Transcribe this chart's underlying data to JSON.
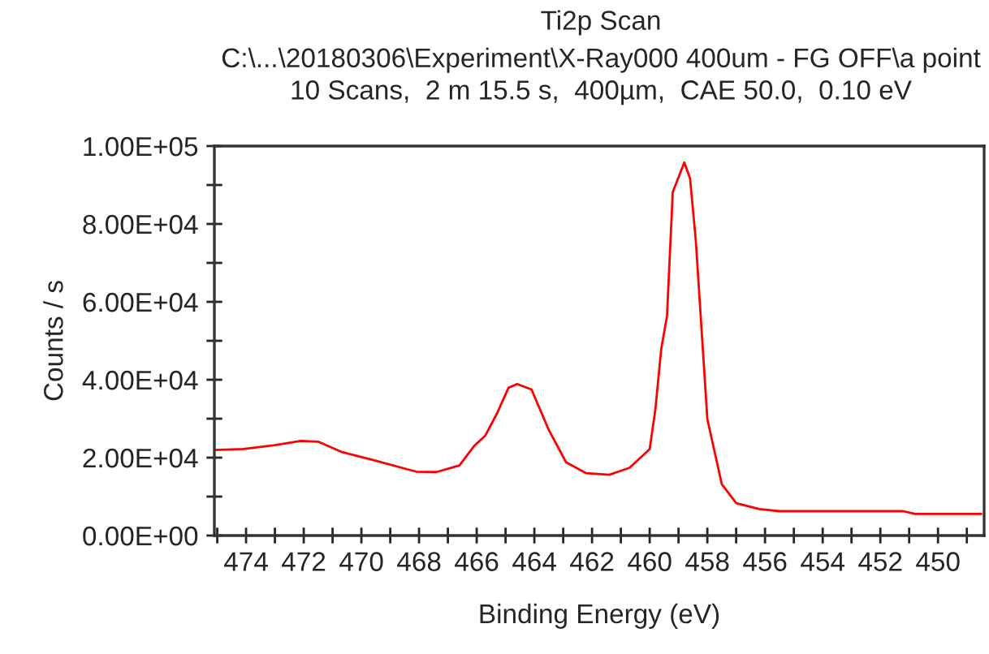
{
  "chart_data": {
    "type": "line",
    "title": "Ti2p Scan",
    "subtitle": "C:\\...\\20180306\\Experiment\\X-Ray000 400um - FG OFF\\a point\n10 Scans,  2 m 15.5 s,  400µm,  CAE 50.0,  0.10 eV",
    "xlabel": "Binding Energy (eV)",
    "ylabel": "Counts / s",
    "xlim": [
      475.1,
      448.4
    ],
    "ylim": [
      0,
      100000
    ],
    "xticks": [
      {
        "value": 475,
        "label": null
      },
      474,
      {
        "value": 473,
        "label": null
      },
      472,
      {
        "value": 471,
        "label": null
      },
      470,
      {
        "value": 469,
        "label": null
      },
      468,
      {
        "value": 467,
        "label": null
      },
      466,
      {
        "value": 465,
        "label": null
      },
      464,
      {
        "value": 463,
        "label": null
      },
      462,
      {
        "value": 461,
        "label": null
      },
      460,
      {
        "value": 459,
        "label": null
      },
      458,
      {
        "value": 457,
        "label": null
      },
      456,
      {
        "value": 455,
        "label": null
      },
      454,
      {
        "value": 453,
        "label": null
      },
      452,
      {
        "value": 451,
        "label": null
      },
      450,
      {
        "value": 449,
        "label": null
      }
    ],
    "yticks": [
      {
        "value": 0,
        "label": "0.00E+00"
      },
      {
        "value": 10000,
        "label": null
      },
      {
        "value": 20000,
        "label": "2.00E+04"
      },
      {
        "value": 30000,
        "label": null
      },
      {
        "value": 40000,
        "label": "4.00E+04"
      },
      {
        "value": 50000,
        "label": null
      },
      {
        "value": 60000,
        "label": "6.00E+04"
      },
      {
        "value": 70000,
        "label": null
      },
      {
        "value": 80000,
        "label": "8.00E+04"
      },
      {
        "value": 90000,
        "label": null
      },
      {
        "value": 100000,
        "label": "1.00E+05"
      }
    ],
    "grid": false,
    "legend": false,
    "marker": "none",
    "line_style": "solid",
    "series": [
      {
        "color": "#ff0000",
        "x": [
          475.1,
          474.1,
          473.0,
          472.1,
          471.5,
          470.7,
          469.6,
          468.1,
          467.4,
          466.6,
          466.1,
          465.7,
          465.3,
          464.9,
          464.6,
          464.1,
          463.5,
          462.9,
          462.2,
          461.4,
          460.7,
          460.0,
          459.8,
          459.6,
          459.4,
          459.2,
          458.8,
          458.6,
          458.4,
          458.0,
          457.5,
          457.0,
          456.2,
          455.5,
          451.2,
          450.8,
          448.5
        ],
        "values": [
          21950,
          22200,
          23200,
          24300,
          24100,
          21500,
          19400,
          16400,
          16300,
          18000,
          22900,
          25700,
          31300,
          37900,
          38900,
          37500,
          27100,
          18800,
          16000,
          15600,
          17400,
          22200,
          32600,
          47900,
          56300,
          88200,
          95800,
          91700,
          75700,
          29900,
          13200,
          8300,
          6800,
          6250,
          6250,
          5550,
          5550
        ]
      }
    ]
  }
}
